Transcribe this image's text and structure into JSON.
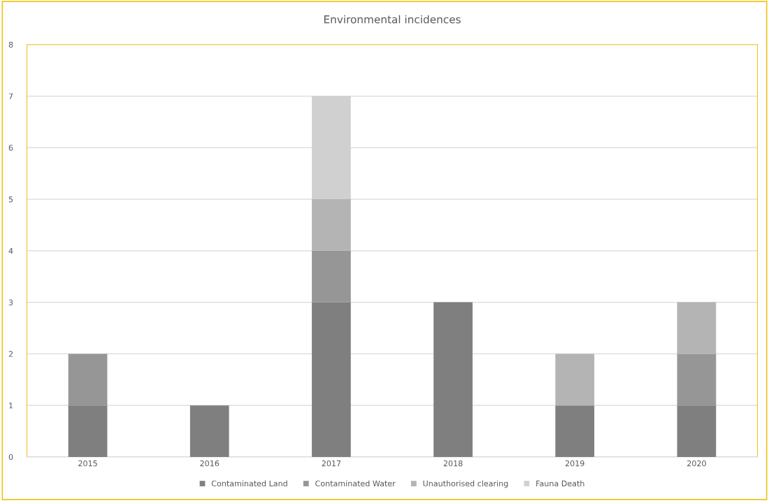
{
  "chart_data": {
    "type": "bar",
    "title": "Environmental incidences",
    "stacked": true,
    "categories": [
      "2015",
      "2016",
      "2017",
      "2018",
      "2019",
      "2020"
    ],
    "series": [
      {
        "name": "Contaminated Land",
        "color": "#7f7f7f",
        "values": [
          1,
          1,
          3,
          3,
          1,
          1
        ]
      },
      {
        "name": "Contaminated Water",
        "color": "#969696",
        "values": [
          1,
          0,
          1,
          0,
          0,
          1
        ]
      },
      {
        "name": "Unauthorised clearing",
        "color": "#b4b4b4",
        "values": [
          0,
          0,
          1,
          0,
          1,
          1
        ]
      },
      {
        "name": "Fauna Death",
        "color": "#d0d0d0",
        "values": [
          0,
          0,
          2,
          0,
          0,
          0
        ]
      }
    ],
    "ylim": [
      0,
      8
    ],
    "yticks": [
      0,
      1,
      2,
      3,
      4,
      5,
      6,
      7,
      8
    ],
    "grid": "y",
    "legend": "bottom"
  }
}
